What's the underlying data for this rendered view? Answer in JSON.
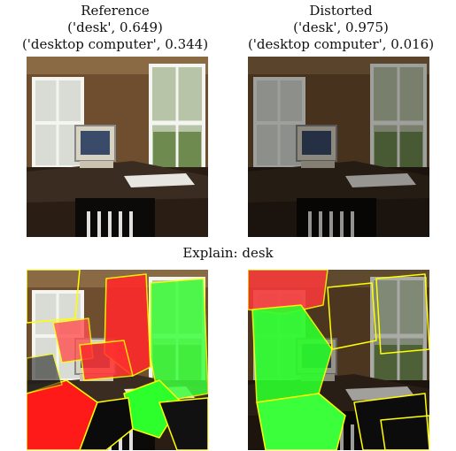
{
  "panels": [
    {
      "title": "Reference",
      "predictions": [
        "('desk', 0.649)",
        "('desktop computer', 0.344)"
      ]
    },
    {
      "title": "Distorted",
      "predictions": [
        "('desk', 0.975)",
        "('desktop computer', 0.016)"
      ]
    }
  ],
  "explain_title": "Explain: desk"
}
